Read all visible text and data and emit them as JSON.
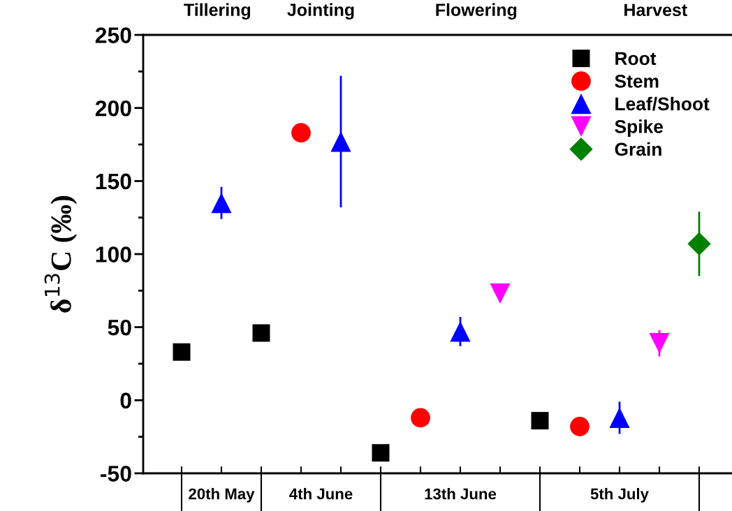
{
  "chart_data": {
    "type": "scatter",
    "ylabel": "δ$^{13}$C (‰)",
    "categories": [
      null,
      null,
      null,
      null,
      null,
      null,
      null,
      null,
      null,
      null,
      null,
      null,
      null,
      null
    ],
    "series": [
      {
        "name": "Root",
        "color": "#000000",
        "marker": "square",
        "values": [
          33,
          null,
          46,
          null,
          null,
          -36,
          null,
          null,
          null,
          -14,
          null,
          null,
          null,
          null
        ],
        "errors": [
          null,
          null,
          null,
          null,
          null,
          null,
          null,
          null,
          null,
          null,
          null,
          null,
          null,
          null
        ]
      },
      {
        "name": "Stem",
        "color": "#ff0000",
        "marker": "circle",
        "values": [
          null,
          null,
          null,
          183,
          null,
          null,
          -12,
          null,
          null,
          null,
          -18,
          null,
          null,
          null
        ],
        "errors": [
          null,
          null,
          null,
          null,
          null,
          null,
          null,
          null,
          null,
          null,
          null,
          null,
          null,
          null
        ]
      },
      {
        "name": "Leaf/Shoot",
        "color": "#0000ff",
        "marker": "triangle",
        "values": [
          null,
          135,
          null,
          null,
          177,
          null,
          null,
          47,
          null,
          null,
          null,
          -12,
          null,
          null
        ],
        "errors": [
          null,
          11,
          null,
          null,
          45,
          null,
          null,
          10,
          null,
          null,
          null,
          11,
          null,
          null
        ]
      },
      {
        "name": "Spike",
        "color": "#ff00ff",
        "marker": "triangle_down",
        "values": [
          null,
          null,
          null,
          null,
          null,
          null,
          null,
          null,
          73,
          null,
          null,
          null,
          39,
          null
        ],
        "errors": [
          null,
          null,
          null,
          null,
          null,
          null,
          null,
          null,
          null,
          null,
          null,
          null,
          9,
          null
        ]
      },
      {
        "name": "Grain",
        "color": "#008000",
        "marker": "diamond",
        "values": [
          null,
          null,
          null,
          null,
          null,
          null,
          null,
          null,
          null,
          null,
          null,
          null,
          null,
          107
        ],
        "errors": [
          null,
          null,
          null,
          null,
          null,
          null,
          null,
          null,
          null,
          null,
          null,
          null,
          null,
          22
        ]
      }
    ],
    "ylim": [
      -50,
      250
    ],
    "yticks": [
      -50,
      {
        "value": -25,
        "label": null
      },
      0,
      {
        "value": 25,
        "label": null
      },
      50,
      {
        "value": 75,
        "label": null
      },
      100,
      {
        "value": 125,
        "label": null
      },
      150,
      {
        "value": 175,
        "label": null
      },
      200,
      {
        "value": 225,
        "label": null
      },
      250
    ],
    "annotations": [
      "Tillering",
      "Jointing",
      "Flowering",
      "Harvest",
      "20th May",
      "4th June",
      "13th June",
      "5th July"
    ],
    "legend": "top right",
    "grid": false
  }
}
